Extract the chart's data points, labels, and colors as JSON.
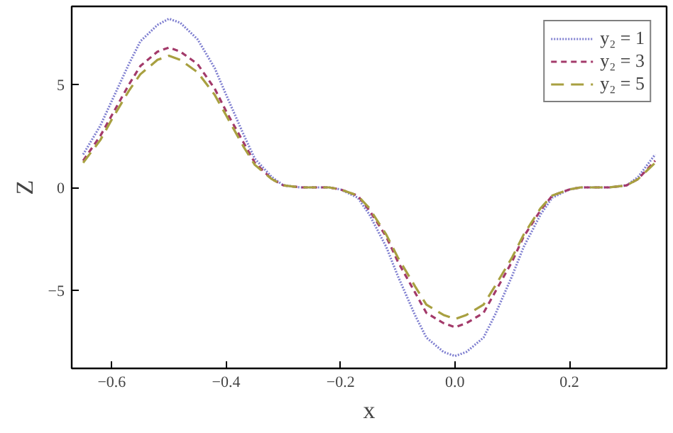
{
  "chart_data": {
    "type": "line",
    "xlabel": "x",
    "ylabel": "Z",
    "xlim": [
      -0.67,
      0.37
    ],
    "ylim": [
      -8.8,
      8.8
    ],
    "xticks": [
      -0.6,
      -0.4,
      -0.2,
      {
        "value": 0.0,
        "label": "0.0"
      },
      0.2
    ],
    "yticks": [
      -5,
      0,
      5
    ],
    "grid": false,
    "legend": "top right",
    "marker": "none",
    "x": [
      -0.65,
      -0.62,
      -0.6,
      -0.57,
      -0.55,
      -0.52,
      -0.5,
      -0.48,
      -0.45,
      -0.42,
      -0.4,
      -0.37,
      -0.35,
      -0.32,
      -0.3,
      -0.27,
      -0.25,
      -0.22,
      -0.2,
      -0.17,
      -0.15,
      -0.12,
      -0.1,
      -0.07,
      -0.05,
      -0.02,
      0,
      0.02,
      0.05,
      0.07,
      0.1,
      0.12,
      0.15,
      0.17,
      0.2,
      0.22,
      0.25,
      0.27,
      0.3,
      0.32,
      0.35
    ],
    "series": [
      {
        "name": "y₂ = 1",
        "color": "#7f7fd0",
        "line_style": "dotted",
        "values": [
          1.6,
          3.0,
          4.2,
          6.0,
          7.1,
          7.9,
          8.2,
          8.0,
          7.2,
          5.8,
          4.5,
          2.6,
          1.4,
          0.5,
          0.1,
          0.0,
          0.0,
          0.0,
          -0.1,
          -0.5,
          -1.3,
          -2.9,
          -4.3,
          -6.2,
          -7.3,
          -8.0,
          -8.2,
          -8.0,
          -7.3,
          -6.2,
          -4.3,
          -2.9,
          -1.3,
          -0.5,
          -0.1,
          0.0,
          0.0,
          0.0,
          0.1,
          0.5,
          1.6
        ]
      },
      {
        "name": "y₂ = 3",
        "color": "#a33a6a",
        "line_style": "dashed",
        "values": [
          1.3,
          2.5,
          3.5,
          5.0,
          5.9,
          6.6,
          6.8,
          6.6,
          6.0,
          4.8,
          3.7,
          2.2,
          1.2,
          0.4,
          0.1,
          0.0,
          0.0,
          0.0,
          -0.1,
          -0.4,
          -1.1,
          -2.4,
          -3.6,
          -5.1,
          -6.1,
          -6.6,
          -6.8,
          -6.6,
          -6.1,
          -5.1,
          -3.6,
          -2.4,
          -1.1,
          -0.4,
          -0.1,
          0.0,
          0.0,
          0.0,
          0.1,
          0.4,
          1.3
        ]
      },
      {
        "name": "y₂ = 5",
        "color": "#a8a040",
        "line_style": "longdash",
        "values": [
          1.2,
          2.3,
          3.3,
          4.7,
          5.5,
          6.2,
          6.4,
          6.2,
          5.6,
          4.5,
          3.5,
          2.0,
          1.1,
          0.4,
          0.1,
          0.0,
          0.0,
          0.0,
          -0.1,
          -0.4,
          -1.0,
          -2.3,
          -3.4,
          -4.8,
          -5.7,
          -6.2,
          -6.4,
          -6.2,
          -5.7,
          -4.8,
          -3.4,
          -2.3,
          -1.0,
          -0.4,
          -0.1,
          0.0,
          0.0,
          0.0,
          0.1,
          0.4,
          1.2
        ]
      }
    ]
  }
}
